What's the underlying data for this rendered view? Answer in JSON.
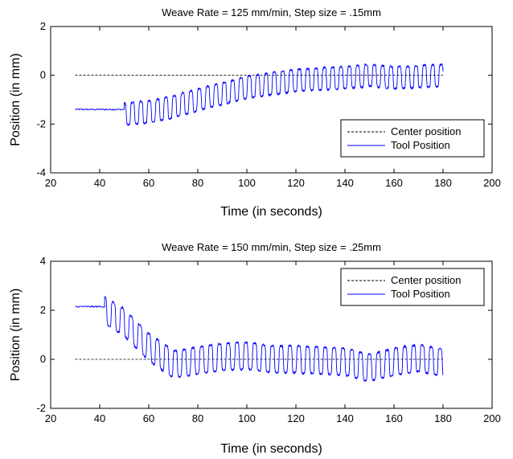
{
  "chart_data": [
    {
      "type": "line",
      "title": "Weave Rate = 125 mm/min, Step size = .15mm",
      "xlabel": "Time (in seconds)",
      "ylabel": "Position (in mm)",
      "xlim": [
        20,
        200
      ],
      "ylim": [
        -4,
        2
      ],
      "xticks": [
        20,
        40,
        60,
        80,
        100,
        120,
        140,
        160,
        180,
        200
      ],
      "yticks": [
        -4,
        -2,
        0,
        2
      ],
      "legend": "bottom-right",
      "series": [
        {
          "name": "Center position",
          "color": "#000000",
          "dash": "dashed",
          "x": [
            30,
            180
          ],
          "y": [
            0,
            0
          ]
        },
        {
          "name": "Tool Position",
          "color": "#0000ff",
          "dash": "solid",
          "flat": {
            "x_start": 30,
            "x_end": 50,
            "y": -1.4
          },
          "oscillation": {
            "x_start": 50,
            "x_end": 180,
            "period": 3.4,
            "amplitude": 0.45,
            "center_points": {
              "x": [
                50,
                60,
                70,
                80,
                90,
                100,
                110,
                120,
                130,
                140,
                150,
                160,
                170,
                180
              ],
              "y": [
                -1.6,
                -1.5,
                -1.3,
                -1.0,
                -0.75,
                -0.5,
                -0.35,
                -0.2,
                -0.15,
                -0.1,
                0.0,
                -0.1,
                -0.05,
                0.0
              ]
            }
          }
        }
      ]
    },
    {
      "type": "line",
      "title": "Weave Rate = 150 mm/min, Step size = .25mm",
      "xlabel": "Time (in seconds)",
      "ylabel": "Position (in mm)",
      "xlim": [
        20,
        200
      ],
      "ylim": [
        -2,
        4
      ],
      "xticks": [
        20,
        40,
        60,
        80,
        100,
        120,
        140,
        160,
        180,
        200
      ],
      "yticks": [
        -2,
        0,
        2,
        4
      ],
      "legend": "top-right",
      "series": [
        {
          "name": "Center position",
          "color": "#000000",
          "dash": "dashed",
          "x": [
            30,
            180
          ],
          "y": [
            0,
            0
          ]
        },
        {
          "name": "Tool Position",
          "color": "#0000ff",
          "dash": "solid",
          "flat": {
            "x_start": 30,
            "x_end": 42,
            "y": 2.15
          },
          "oscillation": {
            "x_start": 42,
            "x_end": 180,
            "period": 3.6,
            "amplitude": 0.55,
            "center_points": {
              "x": [
                42,
                50,
                60,
                70,
                80,
                90,
                100,
                110,
                120,
                130,
                140,
                150,
                160,
                170,
                180
              ],
              "y": [
                2.0,
                1.5,
                0.5,
                -0.2,
                -0.05,
                0.1,
                0.15,
                0.0,
                0.0,
                -0.05,
                -0.1,
                -0.35,
                -0.1,
                0.05,
                -0.15
              ]
            }
          }
        }
      ]
    }
  ]
}
